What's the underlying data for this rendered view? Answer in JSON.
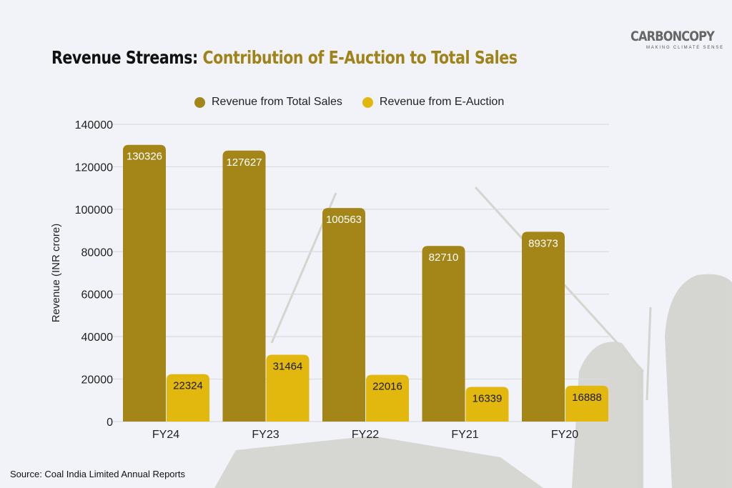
{
  "title": {
    "part1": "Revenue Streams:",
    "part2": "Contribution of E-Auction to Total Sales"
  },
  "logo": {
    "name": "CARBONCOPY",
    "tagline": "MAKING CLIMATE SENSE"
  },
  "source": "Source: Coal India Limited Annual Reports",
  "colors": {
    "total": "#a48518",
    "auction": "#e2b70e",
    "title_accent": "#a08318"
  },
  "chart_data": {
    "type": "bar",
    "title": "Revenue Streams: Contribution of E-Auction to Total Sales",
    "xlabel": "",
    "ylabel": "Revenue (INR crore)",
    "ylim": [
      0,
      140000
    ],
    "yticks": [
      0,
      20000,
      40000,
      60000,
      80000,
      100000,
      120000,
      140000
    ],
    "categories": [
      "FY24",
      "FY23",
      "FY22",
      "FY21",
      "FY20"
    ],
    "series": [
      {
        "name": "Revenue from Total Sales",
        "values": [
          130326,
          127627,
          100563,
          82710,
          89373
        ]
      },
      {
        "name": "Revenue from E-Auction",
        "values": [
          22324,
          31464,
          22016,
          16339,
          16888
        ]
      }
    ],
    "grid": true,
    "legend": "top-center"
  }
}
